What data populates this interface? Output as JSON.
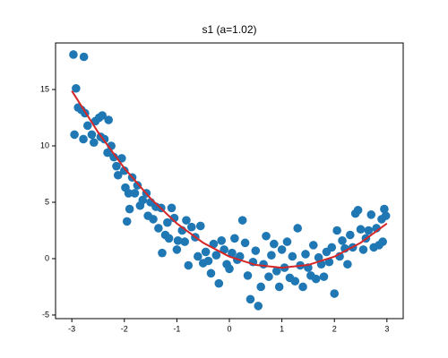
{
  "chart_data": {
    "type": "scatter",
    "title": "s1  (a=1.02)",
    "x": [
      -2.97,
      -2.77,
      -2.92,
      -2.95,
      -2.88,
      -2.82,
      -2.75,
      -2.78,
      -2.7,
      -2.62,
      -2.58,
      -2.55,
      -2.48,
      -2.42,
      -2.45,
      -2.38,
      -2.3,
      -2.32,
      -2.25,
      -2.2,
      -2.15,
      -2.12,
      -2.05,
      -2.0,
      -1.98,
      -1.92,
      -1.9,
      -1.95,
      -1.85,
      -1.8,
      -1.75,
      -1.7,
      -1.65,
      -1.58,
      -1.55,
      -1.5,
      -1.45,
      -1.4,
      -1.35,
      -1.3,
      -1.28,
      -1.22,
      -1.18,
      -1.15,
      -1.1,
      -1.05,
      -1.0,
      -0.98,
      -0.9,
      -0.85,
      -0.82,
      -0.78,
      -0.72,
      -0.65,
      -0.6,
      -0.55,
      -0.5,
      -0.45,
      -0.4,
      -0.35,
      -0.3,
      -0.25,
      -0.2,
      -0.15,
      -0.1,
      -0.05,
      0.0,
      0.05,
      0.1,
      0.15,
      0.2,
      0.25,
      0.3,
      0.35,
      0.4,
      0.45,
      0.5,
      0.55,
      0.6,
      0.65,
      0.7,
      0.75,
      0.8,
      0.85,
      0.9,
      0.95,
      1.0,
      1.05,
      1.1,
      1.15,
      1.2,
      1.25,
      1.3,
      1.35,
      1.4,
      1.45,
      1.5,
      1.55,
      1.6,
      1.65,
      1.7,
      1.75,
      1.8,
      1.85,
      1.9,
      1.95,
      2.0,
      2.05,
      2.1,
      2.15,
      2.2,
      2.25,
      2.3,
      2.35,
      2.4,
      2.45,
      2.5,
      2.55,
      2.6,
      2.65,
      2.7,
      2.75,
      2.8,
      2.85,
      2.9,
      2.95,
      2.98,
      2.92
    ],
    "values": [
      18.1,
      17.9,
      15.1,
      11.0,
      13.4,
      13.2,
      12.9,
      10.6,
      11.8,
      11.0,
      10.3,
      12.2,
      12.5,
      12.7,
      10.8,
      10.6,
      12.3,
      9.4,
      10.0,
      9.0,
      8.2,
      7.4,
      8.9,
      7.8,
      6.3,
      5.8,
      4.4,
      3.3,
      7.2,
      5.8,
      6.5,
      4.7,
      5.2,
      5.8,
      3.8,
      5.0,
      3.5,
      4.6,
      2.7,
      4.5,
      0.5,
      2.1,
      3.2,
      1.8,
      4.5,
      3.6,
      0.8,
      1.6,
      2.5,
      1.5,
      3.4,
      -0.6,
      2.8,
      1.9,
      0.2,
      2.9,
      -0.4,
      0.6,
      -0.2,
      -1.3,
      1.3,
      0.3,
      -2.2,
      1.6,
      0.8,
      -0.5,
      -0.9,
      0.5,
      1.8,
      -0.1,
      0.2,
      3.4,
      1.4,
      -1.5,
      -3.6,
      -0.3,
      0.7,
      -4.2,
      -2.5,
      -0.5,
      2.0,
      -1.6,
      0.3,
      1.3,
      -1.1,
      -2.5,
      0.8,
      -0.8,
      1.5,
      -1.7,
      0.2,
      -2.0,
      2.7,
      -0.6,
      -2.5,
      0.4,
      -0.8,
      -1.5,
      1.2,
      -1.8,
      0.1,
      -0.5,
      -1.6,
      0.6,
      -0.3,
      1.0,
      -3.1,
      2.5,
      0.2,
      1.6,
      0.9,
      -0.5,
      2.1,
      1.0,
      4.0,
      4.3,
      2.6,
      0.8,
      1.8,
      2.5,
      3.9,
      1.0,
      2.7,
      1.2,
      3.5,
      4.4,
      3.8,
      1.5
    ],
    "color": "#1f77b4",
    "fit": {
      "x": [
        -3,
        -2.5,
        -2,
        -1.5,
        -1,
        -0.5,
        0,
        0.5,
        1,
        1.5,
        2,
        2.5,
        3
      ],
      "values": [
        14.88,
        11.21,
        8.02,
        5.33,
        3.12,
        1.41,
        0.18,
        -0.56,
        -0.8,
        -0.56,
        0.18,
        1.41,
        3.12
      ],
      "color": "#d62728"
    },
    "xlim": [
      -3.31,
      3.31
    ],
    "ylim": [
      -5.32,
      19.13
    ],
    "xticks": [
      -3,
      -2,
      -1,
      0,
      1,
      2,
      3
    ],
    "yticks": [
      -5,
      0,
      5,
      10,
      15
    ]
  }
}
